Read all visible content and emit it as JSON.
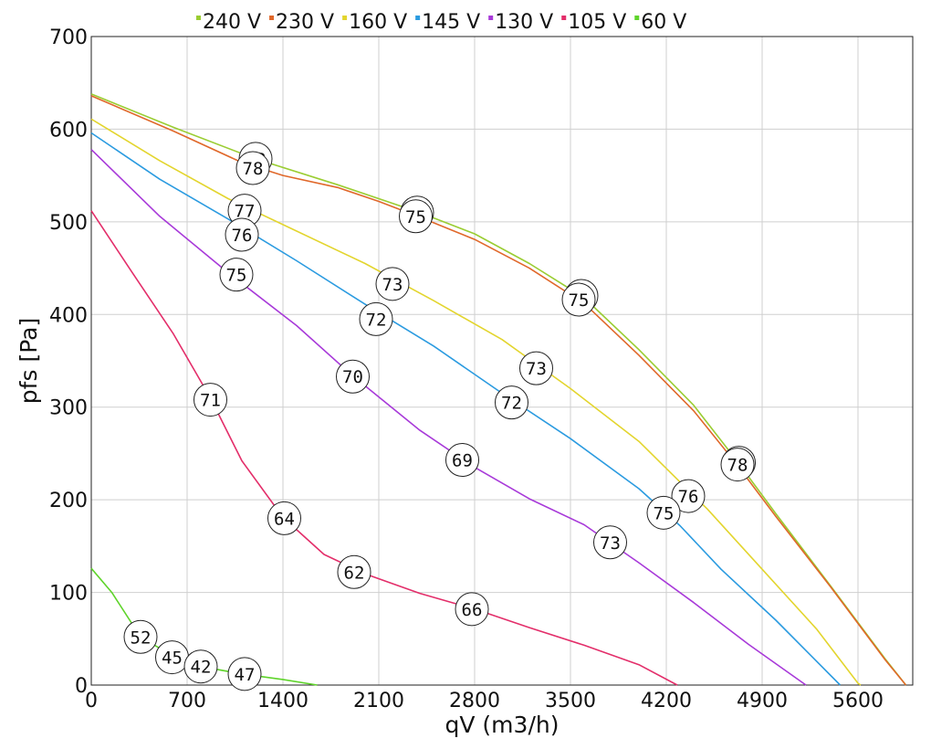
{
  "chart_data": {
    "type": "line",
    "xlabel": "qV (m3/h)",
    "ylabel": "pfs [Pa]",
    "xlim": [
      0,
      6000
    ],
    "ylim": [
      0,
      700
    ],
    "xticks": [
      0,
      700,
      1400,
      2100,
      2800,
      3500,
      4200,
      4900,
      5600
    ],
    "yticks": [
      0,
      100,
      200,
      300,
      400,
      500,
      600,
      700
    ],
    "grid": true,
    "legend_position": "top",
    "series": [
      {
        "name": "240 V",
        "color": "#9acd32",
        "points": [
          [
            0,
            638
          ],
          [
            600,
            602
          ],
          [
            1200,
            568
          ],
          [
            1800,
            540
          ],
          [
            2400,
            510
          ],
          [
            2800,
            487
          ],
          [
            3200,
            455
          ],
          [
            3600,
            418
          ],
          [
            4000,
            362
          ],
          [
            4400,
            302
          ],
          [
            4700,
            245
          ],
          [
            5000,
            185
          ],
          [
            5400,
            107
          ],
          [
            5800,
            28
          ],
          [
            5950,
            0
          ]
        ],
        "markers": [
          {
            "x": 1200,
            "y": 568,
            "label": "78"
          },
          {
            "x": 2380,
            "y": 510,
            "label": "75"
          },
          {
            "x": 3580,
            "y": 420,
            "label": "75"
          },
          {
            "x": 4730,
            "y": 240,
            "label": "78"
          }
        ]
      },
      {
        "name": "230 V",
        "color": "#e0682a",
        "points": [
          [
            0,
            636
          ],
          [
            600,
            598
          ],
          [
            1100,
            564
          ],
          [
            1400,
            550
          ],
          [
            1800,
            537
          ],
          [
            2100,
            522
          ],
          [
            2400,
            505
          ],
          [
            2800,
            481
          ],
          [
            3200,
            450
          ],
          [
            3600,
            412
          ],
          [
            4000,
            356
          ],
          [
            4400,
            296
          ],
          [
            4700,
            241
          ],
          [
            5000,
            182
          ],
          [
            5400,
            106
          ],
          [
            5800,
            27
          ],
          [
            5950,
            0
          ]
        ],
        "markers": [
          {
            "x": 1180,
            "y": 558,
            "label": "78"
          },
          {
            "x": 2370,
            "y": 506,
            "label": "75"
          },
          {
            "x": 3560,
            "y": 416,
            "label": "75"
          },
          {
            "x": 4720,
            "y": 238,
            "label": "78"
          }
        ]
      },
      {
        "name": "160 V",
        "color": "#e3d52e",
        "points": [
          [
            0,
            611
          ],
          [
            500,
            566
          ],
          [
            1000,
            525
          ],
          [
            1500,
            490
          ],
          [
            2000,
            455
          ],
          [
            2500,
            415
          ],
          [
            3000,
            373
          ],
          [
            3500,
            320
          ],
          [
            4000,
            263
          ],
          [
            4500,
            190
          ],
          [
            4900,
            125
          ],
          [
            5300,
            60
          ],
          [
            5600,
            2
          ],
          [
            5620,
            0
          ]
        ],
        "markers": [
          {
            "x": 1120,
            "y": 512,
            "label": "77"
          },
          {
            "x": 2200,
            "y": 433,
            "label": "73"
          },
          {
            "x": 3250,
            "y": 342,
            "label": "73"
          },
          {
            "x": 4360,
            "y": 204,
            "label": "76"
          }
        ]
      },
      {
        "name": "145 V",
        "color": "#2b9be0",
        "points": [
          [
            0,
            596
          ],
          [
            500,
            546
          ],
          [
            1000,
            503
          ],
          [
            1500,
            458
          ],
          [
            2000,
            411
          ],
          [
            2500,
            366
          ],
          [
            3000,
            315
          ],
          [
            3500,
            266
          ],
          [
            4000,
            212
          ],
          [
            4300,
            172
          ],
          [
            4600,
            125
          ],
          [
            5000,
            70
          ],
          [
            5470,
            0
          ]
        ],
        "markers": [
          {
            "x": 1100,
            "y": 486,
            "label": "76"
          },
          {
            "x": 2080,
            "y": 395,
            "label": "72"
          },
          {
            "x": 3070,
            "y": 305,
            "label": "72"
          },
          {
            "x": 4180,
            "y": 186,
            "label": "75"
          }
        ]
      },
      {
        "name": "130 V",
        "color": "#a83ad9",
        "points": [
          [
            0,
            578
          ],
          [
            500,
            506
          ],
          [
            1000,
            445
          ],
          [
            1500,
            388
          ],
          [
            1900,
            335
          ],
          [
            2400,
            275
          ],
          [
            2800,
            235
          ],
          [
            3200,
            201
          ],
          [
            3600,
            173
          ],
          [
            4000,
            132
          ],
          [
            4400,
            89
          ],
          [
            4800,
            44
          ],
          [
            5220,
            0
          ]
        ],
        "markers": [
          {
            "x": 1060,
            "y": 443,
            "label": "75"
          },
          {
            "x": 1910,
            "y": 333,
            "label": "70"
          },
          {
            "x": 2710,
            "y": 243,
            "label": "69"
          },
          {
            "x": 3790,
            "y": 154,
            "label": "73"
          }
        ]
      },
      {
        "name": "105 V",
        "color": "#e32e6a",
        "points": [
          [
            0,
            512
          ],
          [
            300,
            445
          ],
          [
            600,
            379
          ],
          [
            870,
            310
          ],
          [
            1100,
            242
          ],
          [
            1400,
            181
          ],
          [
            1700,
            141
          ],
          [
            2000,
            120
          ],
          [
            2400,
            99
          ],
          [
            2800,
            82
          ],
          [
            3200,
            62
          ],
          [
            3600,
            43
          ],
          [
            4000,
            22
          ],
          [
            4280,
            0
          ]
        ],
        "markers": [
          {
            "x": 870,
            "y": 308,
            "label": "71"
          },
          {
            "x": 1410,
            "y": 180,
            "label": "64"
          },
          {
            "x": 1920,
            "y": 122,
            "label": "62"
          },
          {
            "x": 2780,
            "y": 82,
            "label": "66"
          }
        ]
      },
      {
        "name": "60 V",
        "color": "#5fd42b",
        "points": [
          [
            0,
            126
          ],
          [
            150,
            100
          ],
          [
            360,
            52
          ],
          [
            600,
            31
          ],
          [
            800,
            20
          ],
          [
            1100,
            12
          ],
          [
            1400,
            6
          ],
          [
            1650,
            0
          ]
        ],
        "markers": [
          {
            "x": 360,
            "y": 52,
            "label": "52"
          },
          {
            "x": 590,
            "y": 30,
            "label": "45"
          },
          {
            "x": 800,
            "y": 20,
            "label": "42"
          },
          {
            "x": 1120,
            "y": 12,
            "label": "47"
          }
        ]
      }
    ]
  }
}
